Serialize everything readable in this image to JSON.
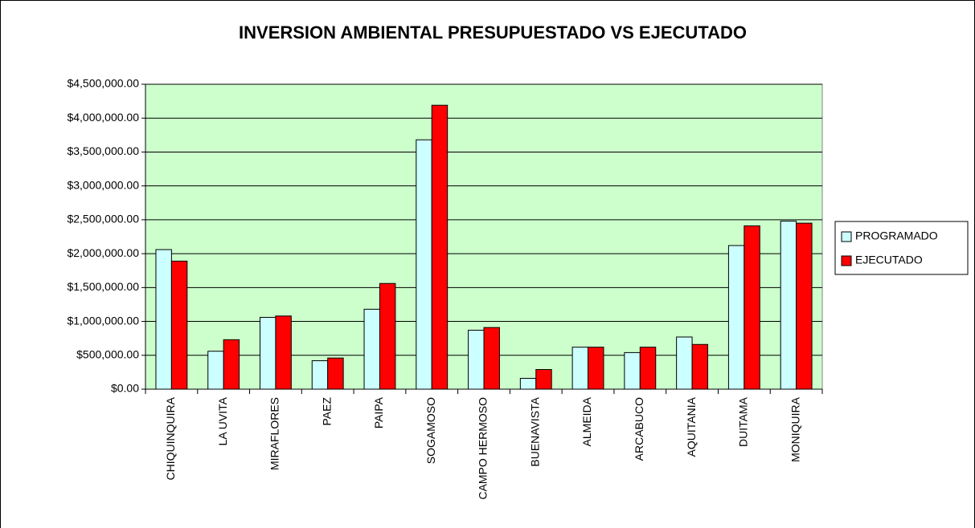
{
  "chart_data": {
    "type": "bar",
    "title": "INVERSION AMBIENTAL PRESUPUESTADO VS EJECUTADO",
    "categories": [
      "CHIQUINQUIRA",
      "LA UVITA",
      "MIRAFLORES",
      "PAEZ",
      "PAIPA",
      "SOGAMOSO",
      "CAMPO HERMOSO",
      "BUENAVISTA",
      "ALMEIDA",
      "ARCABUCO",
      "AQUITANIA",
      "DUITAMA",
      "MONIQUIRA"
    ],
    "series": [
      {
        "name": "PROGRAMADO",
        "color": "#ccffff",
        "values": [
          2060000,
          560000,
          1060000,
          420000,
          1180000,
          3680000,
          870000,
          160000,
          620000,
          540000,
          770000,
          2120000,
          2480000
        ]
      },
      {
        "name": "EJECUTADO",
        "color": "#ff0000",
        "values": [
          1890000,
          730000,
          1080000,
          460000,
          1560000,
          4190000,
          910000,
          290000,
          620000,
          620000,
          660000,
          2410000,
          2450000
        ]
      }
    ],
    "ylim": [
      0,
      4500000
    ],
    "yticks": [
      {
        "value": 0,
        "label": "$0.00"
      },
      {
        "value": 500000,
        "label": "$500,000.00"
      },
      {
        "value": 1000000,
        "label": "$1,000,000.00"
      },
      {
        "value": 1500000,
        "label": "$1,500,000.00"
      },
      {
        "value": 2000000,
        "label": "$2,000,000.00"
      },
      {
        "value": 2500000,
        "label": "$2,500,000.00"
      },
      {
        "value": 3000000,
        "label": "$3,000,000.00"
      },
      {
        "value": 3500000,
        "label": "$3,500,000.00"
      },
      {
        "value": 4000000,
        "label": "$4,000,000.00"
      },
      {
        "value": 4500000,
        "label": "$4,500,000.00"
      }
    ],
    "grid": true,
    "plot_background": "#ccffcc",
    "legend": "right"
  }
}
